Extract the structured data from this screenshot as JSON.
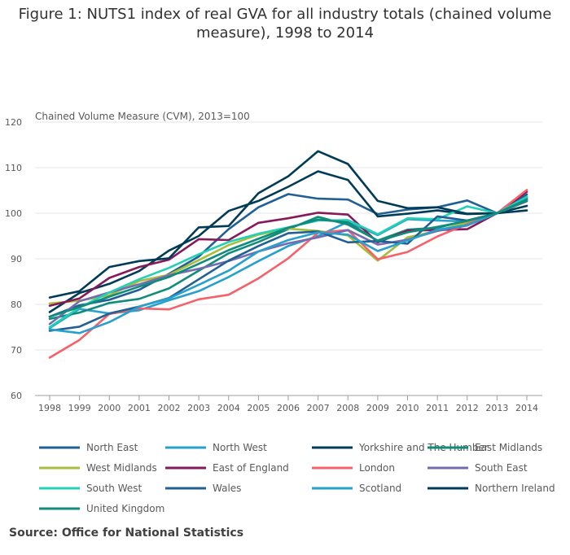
{
  "title": "Figure 1: NUTS1 index of real GVA for all industry totals (chained volume measure), 1998 to 2014",
  "source": "Source: Office for National Statistics",
  "chart_data": {
    "type": "line",
    "title": "Figure 1: NUTS1 index of real GVA for all industry totals (chained volume measure), 1998 to 2014",
    "ylabel": "Chained Volume Measure (CVM), 2013=100",
    "xlabel": "",
    "ylim": [
      60,
      120
    ],
    "yticks": [
      60,
      70,
      80,
      90,
      100,
      110,
      120
    ],
    "grid": true,
    "legend_position": "bottom",
    "x": [
      "1998",
      "1999",
      "2000",
      "2001",
      "2002",
      "2003",
      "2004",
      "2005",
      "2006",
      "2007",
      "2008",
      "2009",
      "2010",
      "2011",
      "2012",
      "2013",
      "2014"
    ],
    "series": [
      {
        "name": "North East",
        "color": "#206095",
        "values": [
          77.3,
          79.8,
          81.0,
          83.2,
          86.7,
          90.5,
          96.5,
          101.3,
          104.2,
          103.2,
          103.0,
          99.8,
          100.8,
          101.3,
          102.8,
          100.0,
          104.1
        ]
      },
      {
        "name": "North West",
        "color": "#27a0cc",
        "values": [
          74.8,
          79.0,
          78.0,
          78.7,
          80.9,
          82.9,
          86.0,
          89.5,
          92.8,
          95.0,
          98.1,
          95.2,
          98.7,
          98.4,
          98.2,
          100.0,
          103.0
        ]
      },
      {
        "name": "Yorkshire and The Humber",
        "color": "#003c57",
        "values": [
          78.3,
          82.5,
          84.5,
          87.3,
          91.8,
          95.0,
          100.5,
          102.7,
          105.8,
          109.2,
          107.3,
          99.3,
          99.9,
          100.6,
          99.8,
          100.0,
          101.6
        ]
      },
      {
        "name": "East Midlands",
        "color": "#118c7b",
        "values": [
          76.8,
          78.2,
          80.3,
          81.2,
          83.5,
          87.4,
          91.2,
          93.7,
          96.5,
          99.2,
          97.5,
          94.0,
          96.4,
          96.8,
          98.4,
          100.0,
          103.3
        ]
      },
      {
        "name": "West Midlands",
        "color": "#a8bd3a",
        "values": [
          80.2,
          80.8,
          82.0,
          85.1,
          86.5,
          89.7,
          93.0,
          95.3,
          96.6,
          96.1,
          95.1,
          89.6,
          94.7,
          96.1,
          98.0,
          100.0,
          102.6
        ]
      },
      {
        "name": "East of England",
        "color": "#871a5b",
        "values": [
          79.7,
          81.3,
          85.8,
          88.2,
          89.8,
          94.3,
          94.1,
          97.9,
          98.9,
          100.1,
          99.7,
          93.6,
          96.2,
          96.3,
          96.5,
          100.0,
          104.7
        ]
      },
      {
        "name": "London",
        "color": "#f66068",
        "values": [
          68.3,
          72.2,
          77.9,
          79.1,
          78.9,
          81.1,
          82.1,
          85.7,
          90.1,
          95.7,
          96.3,
          89.9,
          91.5,
          94.9,
          97.6,
          100.0,
          105.1
        ]
      },
      {
        "name": "South East",
        "color": "#746cb1",
        "values": [
          75.7,
          80.7,
          82.6,
          84.4,
          86.4,
          87.8,
          89.5,
          91.6,
          93.4,
          94.7,
          96.3,
          93.1,
          94.2,
          96.1,
          97.3,
          100.0,
          103.5
        ]
      },
      {
        "name": "South West",
        "color": "#22d0b6",
        "values": [
          75.0,
          79.3,
          82.6,
          85.5,
          88.0,
          91.0,
          93.7,
          95.5,
          96.9,
          98.4,
          98.5,
          95.4,
          98.9,
          98.7,
          101.5,
          100.0,
          103.6
        ]
      },
      {
        "name": "Wales",
        "color": "#206095",
        "values": [
          74.2,
          75.1,
          78.0,
          79.5,
          81.4,
          85.5,
          89.6,
          92.8,
          95.6,
          96.0,
          93.6,
          93.9,
          93.3,
          99.3,
          98.4,
          100.0,
          102.7
        ]
      },
      {
        "name": "Scotland",
        "color": "#27a0cc",
        "values": [
          74.5,
          73.7,
          76.1,
          79.5,
          81.3,
          84.3,
          87.4,
          91.6,
          94.1,
          95.8,
          95.3,
          91.7,
          94.0,
          96.4,
          97.4,
          100.0,
          102.9
        ]
      },
      {
        "name": "Northern Ireland",
        "color": "#003c57",
        "values": [
          81.5,
          82.9,
          88.2,
          89.5,
          90.1,
          96.9,
          97.2,
          104.4,
          108.1,
          113.6,
          110.8,
          102.7,
          101.1,
          101.3,
          99.9,
          100.0,
          100.6
        ]
      },
      {
        "name": "United Kingdom",
        "color": "#118c7b",
        "values": [
          77.3,
          79.4,
          81.7,
          83.9,
          86.0,
          88.9,
          91.9,
          94.4,
          96.8,
          98.6,
          98.0,
          93.9,
          95.8,
          97.0,
          98.3,
          100.0,
          103.0
        ]
      }
    ]
  }
}
